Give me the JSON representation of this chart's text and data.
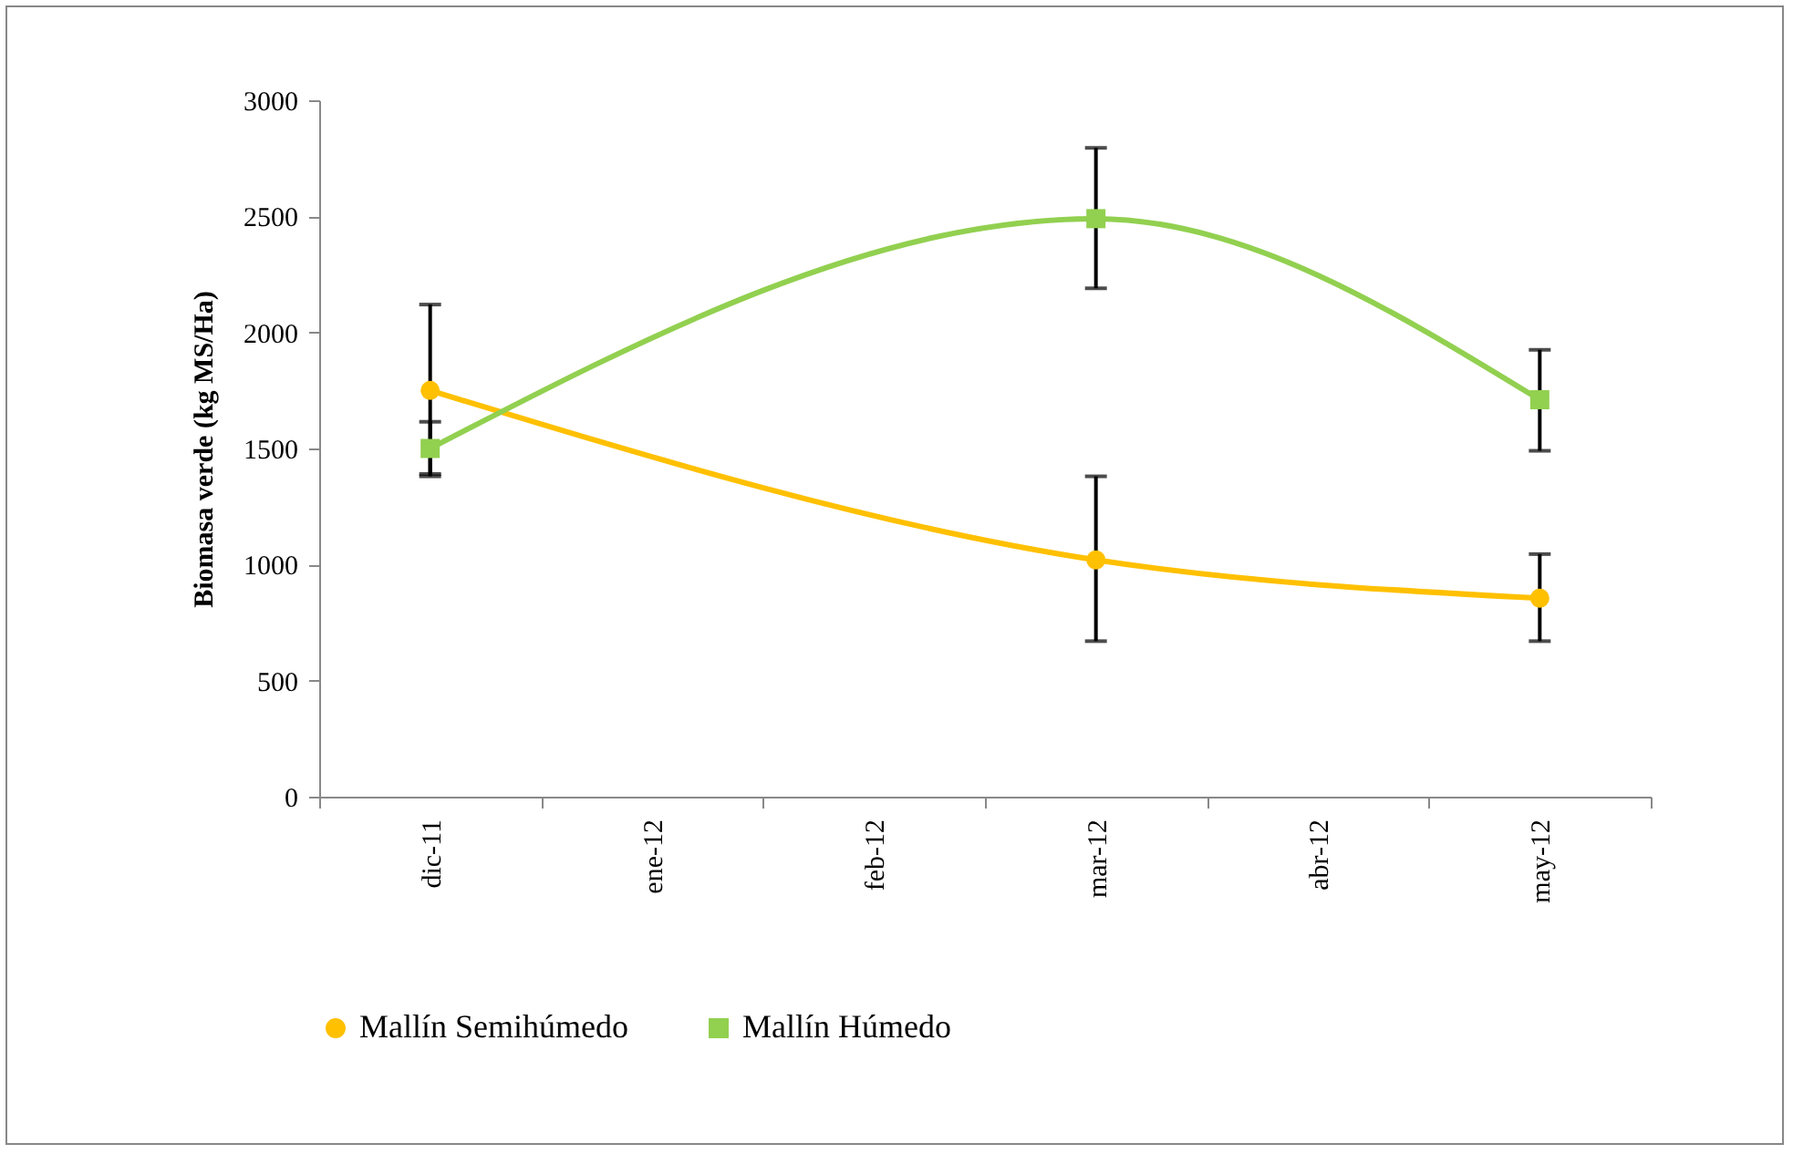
{
  "chart_data": {
    "type": "line",
    "ylabel": "Biomasa verde (kg MS/Ha)",
    "categories": [
      "dic-11",
      "ene-12",
      "feb-12",
      "mar-12",
      "abr-12",
      "may-12"
    ],
    "series": [
      {
        "name": "Mallín Semihúmedo",
        "color": "#ffc000",
        "marker": "circle",
        "values": [
          1750,
          null,
          null,
          1020,
          null,
          855
        ],
        "errors": [
          [
            1380,
            2120
          ],
          null,
          null,
          [
            670,
            1380
          ],
          null,
          [
            670,
            1045
          ]
        ]
      },
      {
        "name": "Mallín Húmedo",
        "color": "#92d050",
        "marker": "square",
        "values": [
          1500,
          null,
          null,
          2490,
          null,
          1710
        ],
        "errors": [
          [
            1390,
            1615
          ],
          null,
          null,
          [
            2190,
            2795
          ],
          null,
          [
            1490,
            1925
          ]
        ]
      }
    ],
    "ylim": [
      0,
      3000
    ],
    "yticks": [
      0,
      500,
      1000,
      1500,
      2000,
      2500,
      3000
    ],
    "legend": "bottom",
    "grid": false
  }
}
